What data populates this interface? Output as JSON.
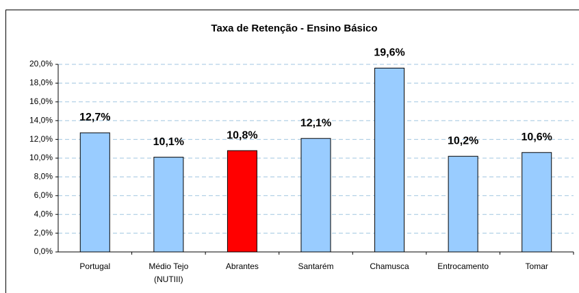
{
  "chart_data": {
    "type": "bar",
    "title": "Taxa de Retenção - Ensino Básico",
    "categories": [
      "Portugal",
      "Médio Tejo (NUTIII)",
      "Abrantes",
      "Santarém",
      "Chamusca",
      "Entrocamento",
      "Tomar"
    ],
    "values": [
      12.7,
      10.1,
      10.8,
      12.1,
      19.6,
      10.2,
      10.6
    ],
    "value_labels": [
      "12,7%",
      "10,1%",
      "10,8%",
      "12,1%",
      "19,6%",
      "10,2%",
      "10,6%"
    ],
    "colors": [
      "#99ccff",
      "#99ccff",
      "#ff0000",
      "#99ccff",
      "#99ccff",
      "#99ccff",
      "#99ccff"
    ],
    "ylim": [
      0,
      20
    ],
    "yticks": [
      {
        "value": 0,
        "label": "0,0%"
      },
      {
        "value": 2,
        "label": "2,0%"
      },
      {
        "value": 4,
        "label": "4,0%"
      },
      {
        "value": 6,
        "label": "6,0%"
      },
      {
        "value": 8,
        "label": "8,0%"
      },
      {
        "value": 10,
        "label": "10,0%"
      },
      {
        "value": 12,
        "label": "12,0%"
      },
      {
        "value": 14,
        "label": "14,0%"
      },
      {
        "value": 16,
        "label": "16,0%"
      },
      {
        "value": 18,
        "label": "18,0%"
      },
      {
        "value": 20,
        "label": "20,0%"
      }
    ],
    "grid": true
  }
}
